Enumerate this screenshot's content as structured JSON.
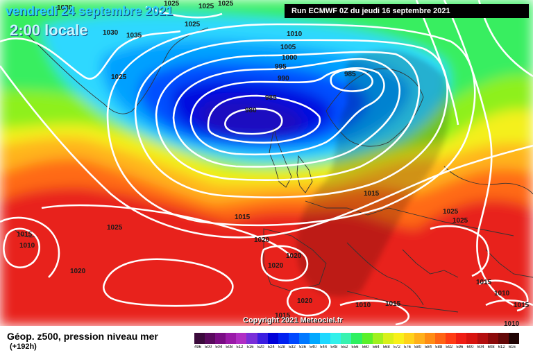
{
  "header": {
    "date": "vendredi 24 septembre 2021",
    "time": "2:00 locale",
    "run": "Run ECMWF 0Z du jeudi 16 septembre 2021"
  },
  "isobars": [
    "1030",
    "1025",
    "1025",
    "1025",
    "1030",
    "1025",
    "1035",
    "1025",
    "1010",
    "1005",
    "1000",
    "995",
    "990",
    "985",
    "985",
    "980",
    "1015",
    "1025",
    "1015",
    "1010",
    "1015",
    "1020",
    "1020",
    "1020",
    "1025",
    "1025",
    "1020",
    "1015",
    "1020",
    "1010",
    "1015",
    "1015",
    "1010",
    "1015",
    "1010"
  ],
  "copyright": "Copyright 2021 Meteociel.fr",
  "footer": {
    "title": "Géop. z500, pression niveau mer",
    "subtitle": "(+192h)"
  },
  "legend": {
    "values": [
      "496",
      "500",
      "504",
      "508",
      "512",
      "516",
      "520",
      "524",
      "528",
      "532",
      "536",
      "540",
      "544",
      "548",
      "552",
      "556",
      "560",
      "564",
      "568",
      "572",
      "576",
      "580",
      "584",
      "588",
      "592",
      "596",
      "600",
      "604",
      "608",
      "612",
      "616"
    ],
    "colors": [
      "#3b0a3b",
      "#5a0a5e",
      "#7a0d84",
      "#9a1aa8",
      "#b02ec4",
      "#7a2fd8",
      "#3c1ee0",
      "#0000d8",
      "#0020f0",
      "#0048ff",
      "#0078ff",
      "#00a8ff",
      "#1ed8ff",
      "#32f0ea",
      "#38f2b0",
      "#2ef060",
      "#5af02a",
      "#a0f01e",
      "#d8f01a",
      "#f8f01a",
      "#ffd21a",
      "#ffb01a",
      "#ff8c14",
      "#ff6414",
      "#ff3c14",
      "#f01e14",
      "#d8140f",
      "#b40f0f",
      "#8c0a0a",
      "#640808",
      "#200404"
    ]
  }
}
